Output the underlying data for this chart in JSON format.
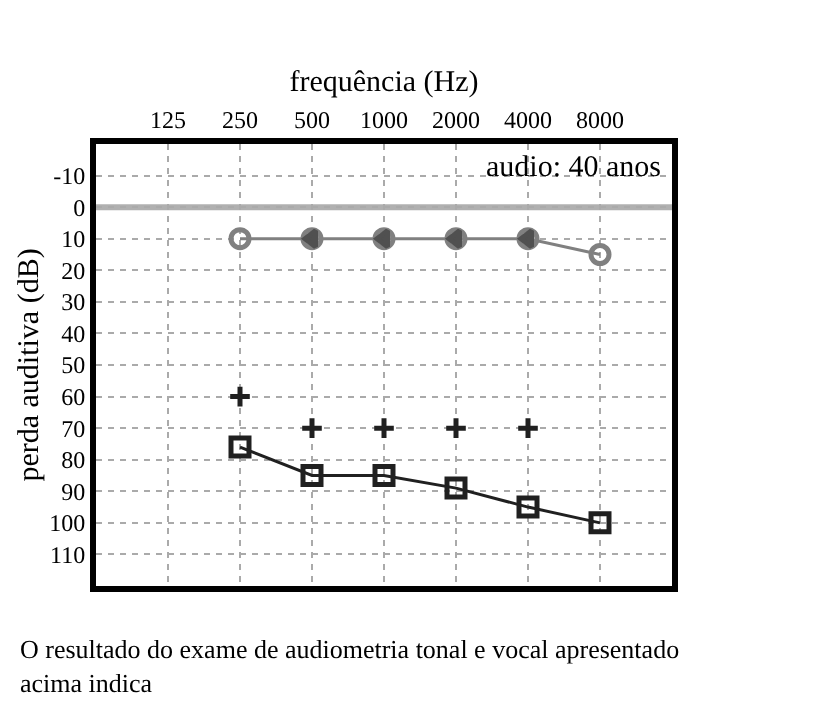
{
  "chart_data": {
    "type": "line",
    "xlabel": "frequência (Hz)",
    "ylabel": "perda auditiva (dB)",
    "categories": [
      "125",
      "250",
      "500",
      "1000",
      "2000",
      "4000",
      "8000"
    ],
    "series": [
      {
        "color": "#808080",
        "marker": "circle",
        "values": [
          null,
          10,
          10,
          10,
          10,
          10,
          15
        ]
      },
      {
        "type": "scatter",
        "color": "#505050",
        "marker": "triangle",
        "values": [
          null,
          null,
          10,
          10,
          10,
          10,
          null
        ]
      },
      {
        "type": "scatter",
        "color": "#202020",
        "marker": "cross",
        "values": [
          null,
          60,
          70,
          70,
          70,
          70,
          null
        ]
      },
      {
        "color": "#202020",
        "marker": "square",
        "values": [
          null,
          76,
          85,
          85,
          89,
          95,
          100
        ]
      }
    ],
    "ylim": [
      120,
      -20
    ],
    "yticks": [
      -10,
      0,
      10,
      20,
      30,
      40,
      50,
      60,
      70,
      80,
      90,
      100,
      110
    ],
    "grid": true,
    "legend": false,
    "ref_lines": [
      {
        "axis": "y",
        "value": 0,
        "color": "#b0b0b0"
      }
    ],
    "annotations": [
      "audio: 40 anos",
      "O resultado do exame de audiometria tonal e vocal apresentado acima indica"
    ]
  }
}
